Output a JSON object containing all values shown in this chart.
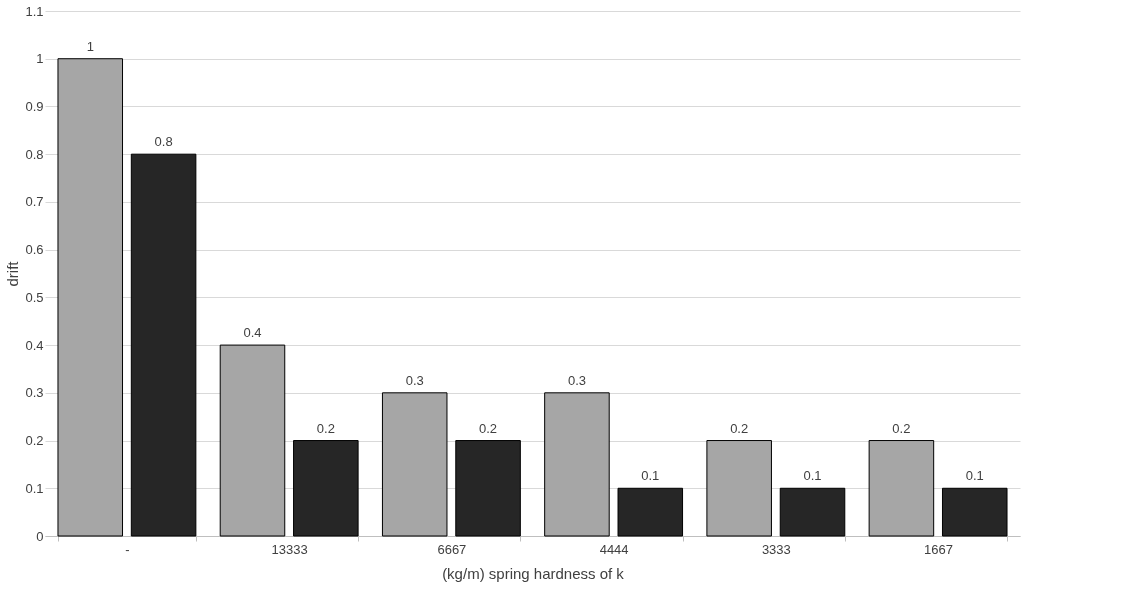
{
  "chart_data": {
    "type": "bar",
    "xlabel": "(kg/m) spring hardness of k",
    "ylabel": "drift",
    "categories": [
      "-",
      "13333",
      "6667",
      "4444",
      "3333",
      "1667"
    ],
    "series": [
      {
        "color": "#a6a6a6",
        "values": [
          1,
          0.4,
          0.3,
          0.3,
          0.2,
          0.2
        ]
      },
      {
        "color": "#262626",
        "values": [
          0.8,
          0.2,
          0.2,
          0.1,
          0.1,
          0.1
        ]
      }
    ],
    "ylim": [
      0,
      1.1
    ],
    "yticks": [
      0,
      0.1,
      0.2,
      0.3,
      0.4,
      0.5,
      0.6,
      0.7,
      0.8,
      0.9,
      1,
      1.1
    ],
    "grid": "y",
    "data_labels": true
  }
}
